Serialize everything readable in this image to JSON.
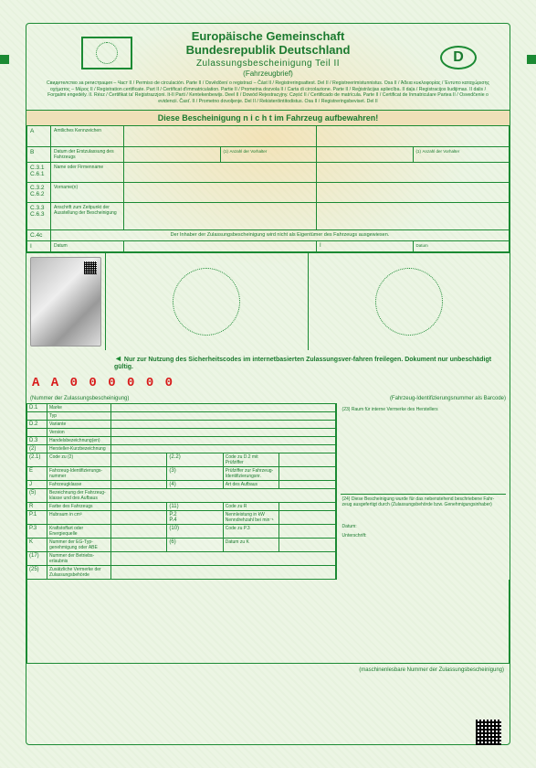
{
  "header": {
    "line1": "Europäische Gemeinschaft",
    "line2": "Bundesrepublik Deutschland",
    "line3": "Zulassungsbescheinigung Teil II",
    "line4": "(Fahrzeugbrief)",
    "country_letter": "D",
    "translations": "Свидетелство за регистрация – Част II / Permiso de circulación. Parte II / Osvědčení o registraci – Část II / Registreringsattest. Del II / Registreerimistunnistus. Osa II / Άδεια κυκλοφορίας / Έντυπο καταχώρισης οχήματος – Μέρος II / Registration certificate. Part II / Certificat d'immatriculation. Partie II / Prometna dozvola II / Carta di circolazione. Parte II / Reģistrācijas apliecība. II daļa / Registracijos liudijimas. II dalis / Forgalmi engedély. II. Rész / Ċertifikat ta' Reġistrazzjoni. It-II Parti / Kentekenbewijs. Deel II / Dowód Rejestracyjny. Część II / Certificado de matrícula. Parte II / Certificat de înmatriculare Partea II / Osvedčenie o evidencii. Časť. II / Prometno dovoljenje. Del II / Rekisteröintitodistus. Osa II / Registreringsbeviset. Del II"
  },
  "warning_bar": "Diese Bescheinigung n i c h t im Fahrzeug aufbewahren!",
  "top_rows": {
    "A": {
      "code": "A",
      "label": "Amtliches Kennzeichen"
    },
    "B": {
      "code": "B",
      "label": "Datum der Erstzulassung des Fahrzeugs",
      "sub1": "(1)",
      "sub1_label": "Anzahl der Vorhalter",
      "sub2": "(1)",
      "sub2_label": "Anzahl der Vorhalter"
    },
    "C31": {
      "code": "C.3.1\nC.6.1",
      "label": "Name oder Firmenname"
    },
    "C32": {
      "code": "C.3.2\nC.6.2",
      "label": "Vorname(n)"
    },
    "C33": {
      "code": "C.3.3\nC.6.3",
      "label": "Anschrift zum Zeitpunkt der Ausstellung der Bescheinigung"
    },
    "C4c": {
      "code": "C.4c",
      "text": "Der Inhaber der Zulassungsbescheinigung wird nicht als Eigentümer des Fahrzeugs ausgewiesen."
    },
    "I": {
      "code": "I",
      "label": "Datum",
      "code2": "I",
      "label2": "Datum"
    }
  },
  "security_note": "Nur zur Nutzung des Sicherheitscodes im internetbasierten Zulassungsver-fahren freilegen. Dokument nur unbeschädigt gültig.",
  "serial": "A A 0 0 0 0 0 0",
  "caption_left": "(Nummer der Zulassungsbescheinigung)",
  "caption_right": "(Fahrzeug-Identifizierungsnummer als Barcode)",
  "lower": {
    "right_23": "(23) Raum für interne Vermerke des Herstellers",
    "right_24": "(24) Diese Bescheinigung wurde für das nebenstehend beschriebene Fahr-zeug ausgefertigt durch (Zulassungsbehörde bzw. Genehmigungsinhaber)",
    "datum": "Datum:",
    "unterschrift": "Unterschrift:",
    "rows": [
      {
        "code": "D.1",
        "label": "Marke"
      },
      {
        "code": "",
        "label": "Typ"
      },
      {
        "code": "D.2",
        "label": "Variante"
      },
      {
        "code": "",
        "label": "Version"
      },
      {
        "code": "D.3",
        "label": "Handelsbezeichnung(en)"
      },
      {
        "code": "(2)",
        "label": "Hersteller-Kurzbezeichnung"
      },
      {
        "code": "(2.1)",
        "label": "Code zu (2)",
        "mid_code": "(2.2)",
        "mid_label": "Code zu D.2 mit Prüfziffer"
      },
      {
        "code": "E",
        "label": "Fahrzeug-Identifizierungs-nummer",
        "mid_code": "(3)",
        "mid_label": "Prüfziffer zur Fahrzeug-Identifizierungsnr."
      },
      {
        "code": "J",
        "label": "Fahrzeugklasse",
        "mid_code": "(4)",
        "mid_label": "Art des Aufbaus"
      },
      {
        "code": "(5)",
        "label": "Bezeichnung der Fahrzeug-klasse und des Aufbaus"
      },
      {
        "code": "R",
        "label": "Farbe des Fahrzeugs",
        "mid_code": "(11)",
        "mid_label": "Code zu R"
      },
      {
        "code": "P.1",
        "label": "Hubraum in cm³",
        "mid_code": "P.2\nP.4",
        "mid_label": "Nennleistung in kW\nNenndrehzahl bei min⁻¹"
      },
      {
        "code": "P.3",
        "label": "Kraftstoffart oder Energiequelle",
        "mid_code": "(10)",
        "mid_label": "Code zu P.3"
      },
      {
        "code": "K",
        "label": "Nummer der EG-Typ-genehmigung oder ABE",
        "mid_code": "(6)",
        "mid_label": "Datum zu K"
      },
      {
        "code": "(17)",
        "label": "Nummer der Betriebs-erlaubnis"
      },
      {
        "code": "(25)",
        "label": "Zusätzliche Vermerke der Zulassungsbehörde"
      }
    ]
  },
  "footer": "(maschinenlesbare Nummer der Zulassungsbescheinigung)"
}
